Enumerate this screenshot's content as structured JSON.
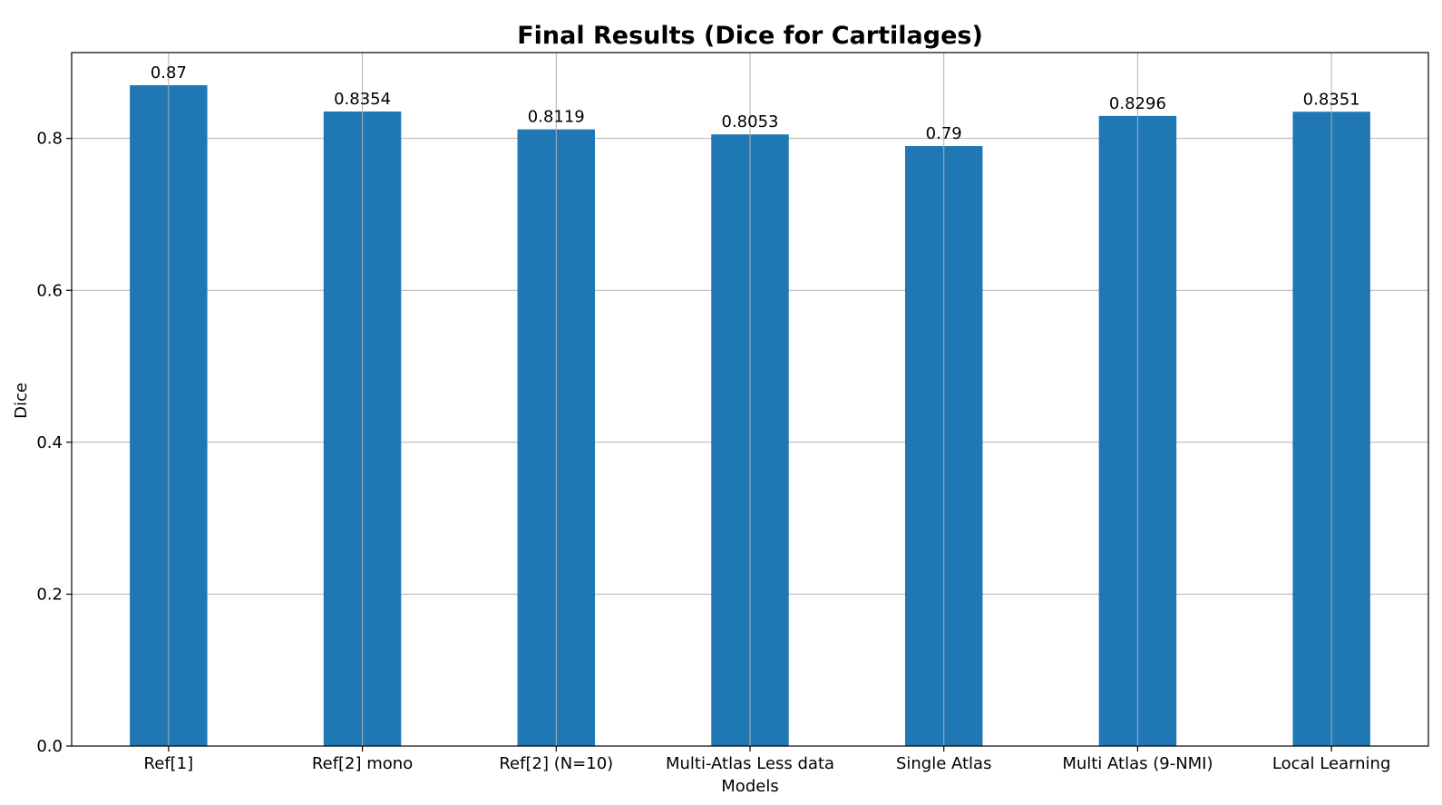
{
  "chart_data": {
    "type": "bar",
    "title": "Final Results (Dice for Cartilages)",
    "xlabel": "Models",
    "ylabel": "Dice",
    "categories": [
      "Ref[1]",
      "Ref[2] mono",
      "Ref[2] (N=10)",
      "Multi-Atlas Less data",
      "Single Atlas",
      "Multi Atlas (9-NMI)",
      "Local Learning"
    ],
    "values": [
      0.87,
      0.8354,
      0.8119,
      0.8053,
      0.79,
      0.8296,
      0.8351
    ],
    "value_labels": [
      "0.87",
      "0.8354",
      "0.8119",
      "0.8053",
      "0.79",
      "0.8296",
      "0.8351"
    ],
    "ylim": [
      0,
      0.913
    ],
    "yticks": [
      0.0,
      0.2,
      0.4,
      0.6,
      0.8
    ],
    "ytick_labels": [
      "0.0",
      "0.2",
      "0.4",
      "0.6",
      "0.8"
    ],
    "grid": true,
    "legend": "none",
    "colors": {
      "bar": "#1f77b4",
      "grid": "#b0b0b0",
      "axis": "#000000"
    }
  }
}
